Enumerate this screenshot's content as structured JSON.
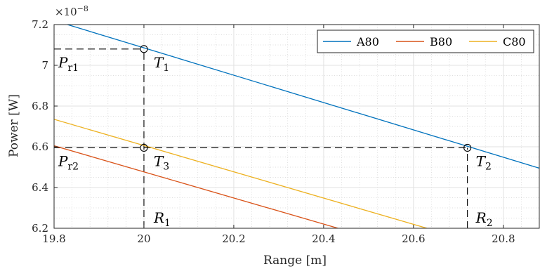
{
  "chart_data": {
    "type": "line",
    "xlabel": "Range [m]",
    "ylabel": "Power [W]",
    "y_exponent_label": "×10",
    "y_exponent_power": "−8",
    "xlim": [
      19.8,
      20.88
    ],
    "ylim": [
      6.2,
      7.2
    ],
    "xticks": [
      19.8,
      20,
      20.2,
      20.4,
      20.6,
      20.8
    ],
    "xtick_labels": [
      "19.8",
      "20",
      "20.2",
      "20.4",
      "20.6",
      "20.8"
    ],
    "yticks": [
      6.2,
      6.4,
      6.6,
      6.8,
      7,
      7.2
    ],
    "ytick_labels": [
      "6.2",
      "6.4",
      "6.6",
      "6.8",
      "7",
      "7.2"
    ],
    "grid": true,
    "minor_grid": true,
    "legend_placement": "top-right",
    "series": [
      {
        "name": "A80",
        "color": "#0072BD",
        "x": [
          19.8,
          20.88
        ],
        "y": [
          7.22,
          6.495
        ]
      },
      {
        "name": "B80",
        "color": "#D95319",
        "x": [
          19.8,
          20.432
        ],
        "y": [
          6.605,
          6.2
        ]
      },
      {
        "name": "C80",
        "color": "#EDB120",
        "x": [
          19.8,
          20.63
        ],
        "y": [
          6.735,
          6.2
        ]
      }
    ],
    "markers": [
      {
        "x": 20.0,
        "y": 7.08
      },
      {
        "x": 20.0,
        "y": 6.595
      },
      {
        "x": 20.72,
        "y": 6.595
      }
    ],
    "guides": {
      "horizontal": [
        {
          "y": 7.08,
          "x_from": 19.8,
          "x_to": 20.0
        },
        {
          "y": 6.595,
          "x_from": 19.8,
          "x_to": 20.72
        }
      ],
      "vertical": [
        {
          "x": 20.0,
          "y_from": 6.2,
          "y_to": 7.08
        },
        {
          "x": 20.72,
          "y_from": 6.2,
          "y_to": 6.595
        }
      ]
    },
    "annotations": [
      {
        "id": "pr1",
        "main": "P",
        "sub": "r1",
        "x": 19.8,
        "y": 7.08,
        "dx": 6,
        "dy": 26
      },
      {
        "id": "pr2",
        "main": "P",
        "sub": "r2",
        "x": 19.8,
        "y": 6.595,
        "dx": 6,
        "dy": 26
      },
      {
        "id": "t1",
        "main": "T",
        "sub": "1",
        "x": 20.0,
        "y": 7.08,
        "dx": 14,
        "dy": 26
      },
      {
        "id": "t3",
        "main": "T",
        "sub": "3",
        "x": 20.0,
        "y": 6.595,
        "dx": 14,
        "dy": 26
      },
      {
        "id": "t2",
        "main": "T",
        "sub": "2",
        "x": 20.72,
        "y": 6.595,
        "dx": 12,
        "dy": 26
      },
      {
        "id": "r1",
        "main": "R",
        "sub": "1",
        "x": 20.0,
        "y": 6.2,
        "dx": 14,
        "dy": -8
      },
      {
        "id": "r2",
        "main": "R",
        "sub": "2",
        "x": 20.72,
        "y": 6.2,
        "dx": 12,
        "dy": -8
      }
    ]
  }
}
